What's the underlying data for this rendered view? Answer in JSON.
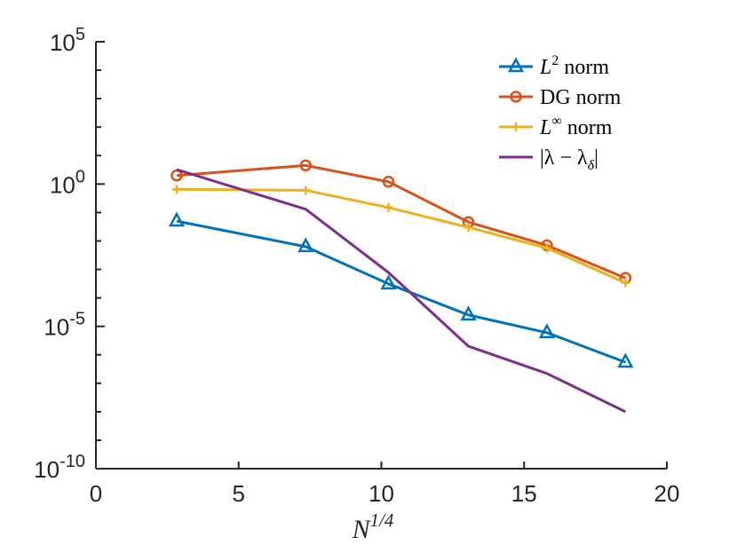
{
  "chart_data": {
    "type": "line",
    "yscale": "log",
    "xlabel": "N^{1/4}",
    "xlim": [
      0,
      20
    ],
    "ylim": [
      1e-10,
      100000.0
    ],
    "xticks": [
      0,
      5,
      10,
      15,
      20
    ],
    "xtick_labels": [
      "0",
      "5",
      "10",
      "15",
      "20"
    ],
    "yticks": [
      {
        "value": 100000.0,
        "base": "10",
        "exp": "5"
      },
      {
        "value": 1.0,
        "base": "10",
        "exp": "0"
      },
      {
        "value": 1e-05,
        "base": "10",
        "exp": "-5"
      },
      {
        "value": 1e-10,
        "base": "10",
        "exp": "-10"
      }
    ],
    "legend_position": "top-right",
    "series": [
      {
        "name": "L^2 norm",
        "legend_main": "L",
        "legend_sup": "2",
        "legend_suffix": " norm",
        "color": "#0072BD",
        "marker": "triangle",
        "x": [
          2.83,
          7.35,
          10.25,
          13.05,
          15.8,
          18.55
        ],
        "y": [
          0.05,
          0.0063,
          0.00031,
          2.5e-05,
          6e-06,
          5.5e-07
        ]
      },
      {
        "name": "DG norm",
        "legend_main": "DG",
        "legend_sup": "",
        "legend_suffix": " norm",
        "color": "#D95319",
        "marker": "circle",
        "x": [
          2.83,
          7.35,
          10.25,
          13.05,
          15.8,
          18.55
        ],
        "y": [
          2.0,
          4.5,
          1.2,
          0.046,
          0.007,
          0.0005
        ]
      },
      {
        "name": "L^∞ norm",
        "legend_main": "L",
        "legend_sup": "∞",
        "legend_suffix": " norm",
        "color": "#EDB120",
        "marker": "plus",
        "x": [
          2.83,
          7.35,
          10.25,
          13.05,
          15.8,
          18.55
        ],
        "y": [
          0.65,
          0.6,
          0.15,
          0.03,
          0.0056,
          0.00034
        ]
      },
      {
        "name": "|λ − λ_δ|",
        "legend_main": "|λ − λ",
        "legend_sub": "δ",
        "legend_suffix": "|",
        "color": "#7E2F8E",
        "marker": "none",
        "x": [
          2.83,
          7.35,
          10.25,
          13.05,
          15.8,
          18.55
        ],
        "y": [
          3.2,
          0.13,
          0.00078,
          2e-06,
          2.2e-07,
          1e-08
        ]
      }
    ]
  }
}
